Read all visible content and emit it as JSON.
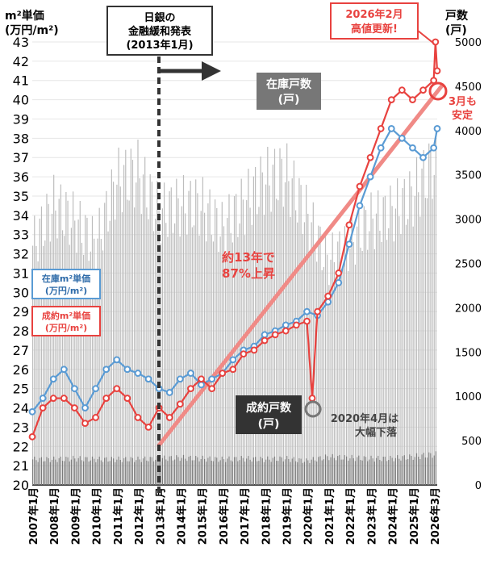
{
  "chart_data": {
    "type": "line",
    "left_axis": {
      "title": [
        "m²単価",
        "(万円/m²)"
      ],
      "ylim": [
        20,
        43
      ],
      "ticks": [
        20,
        21,
        22,
        23,
        24,
        25,
        26,
        27,
        28,
        29,
        30,
        31,
        32,
        33,
        34,
        35,
        36,
        37,
        38,
        39,
        40,
        41,
        42,
        43
      ]
    },
    "right_axis": {
      "title": [
        "戸数",
        "(戸)"
      ],
      "ylim": [
        0,
        5000
      ],
      "ticks": [
        0,
        500,
        1000,
        1500,
        2000,
        2500,
        3000,
        3500,
        4000,
        4500,
        5000
      ]
    },
    "x_ticks": [
      "2007年1月",
      "2008年1月",
      "2009年1月",
      "2010年1月",
      "2011年1月",
      "2012年1月",
      "2013年1月",
      "2014年1月",
      "2015年1月",
      "2016年1月",
      "2017年1月",
      "2018年1月",
      "2019年1月",
      "2020年1月",
      "2021年1月",
      "2022年1月",
      "2023年1月",
      "2024年1月",
      "2025年1月",
      "2026年3月"
    ],
    "x_range": [
      "2007-01",
      "2026-03"
    ],
    "inventory_units_yearly": {
      "x": [
        "2007",
        "2008",
        "2009",
        "2010",
        "2011",
        "2012",
        "2013",
        "2014",
        "2015",
        "2016",
        "2017",
        "2018",
        "2019",
        "2020",
        "2021",
        "2022",
        "2023",
        "2024",
        "2025",
        "2026"
      ],
      "values": [
        3000,
        3500,
        3300,
        3000,
        3800,
        3900,
        3400,
        3500,
        3500,
        3200,
        3500,
        3800,
        3900,
        3400,
        2800,
        3000,
        3300,
        3400,
        3600,
        4000
      ]
    },
    "closed_units_yearly": {
      "x": [
        "2007",
        "2008",
        "2009",
        "2010",
        "2011",
        "2012",
        "2013",
        "2014",
        "2015",
        "2016",
        "2017",
        "2018",
        "2019",
        "2020",
        "2021",
        "2022",
        "2023",
        "2024",
        "2025",
        "2026"
      ],
      "values": [
        320,
        320,
        330,
        320,
        320,
        320,
        330,
        340,
        330,
        320,
        330,
        320,
        330,
        300,
        350,
        340,
        330,
        330,
        350,
        380
      ]
    },
    "series": [
      {
        "name": "在庫m²単価(万円/m²)",
        "color": "#5a9bd4",
        "x": [
          "2007-01",
          "2007-07",
          "2008-01",
          "2008-07",
          "2009-01",
          "2009-07",
          "2010-01",
          "2010-07",
          "2011-01",
          "2011-07",
          "2012-01",
          "2012-07",
          "2013-01",
          "2013-07",
          "2014-01",
          "2014-07",
          "2015-01",
          "2015-07",
          "2016-01",
          "2016-07",
          "2017-01",
          "2017-07",
          "2018-01",
          "2018-07",
          "2019-01",
          "2019-07",
          "2020-01",
          "2020-07",
          "2021-01",
          "2021-07",
          "2022-01",
          "2022-07",
          "2023-01",
          "2023-07",
          "2024-01",
          "2024-07",
          "2025-01",
          "2025-07",
          "2026-01",
          "2026-03"
        ],
        "values": [
          23.8,
          24.5,
          25.5,
          26.0,
          25.0,
          24.0,
          25.0,
          26.0,
          26.5,
          26.0,
          25.8,
          25.5,
          25.0,
          24.8,
          25.5,
          25.8,
          25.2,
          25.5,
          25.8,
          26.5,
          27.0,
          27.2,
          27.8,
          28.0,
          28.3,
          28.5,
          29.0,
          28.8,
          29.5,
          30.5,
          32.5,
          34.5,
          36.0,
          37.5,
          38.5,
          38.0,
          37.5,
          37.0,
          37.5,
          38.5
        ]
      },
      {
        "name": "成約m²単価(万円/m²)",
        "color": "#e8423f",
        "x": [
          "2007-01",
          "2007-07",
          "2008-01",
          "2008-07",
          "2009-01",
          "2009-07",
          "2010-01",
          "2010-07",
          "2011-01",
          "2011-07",
          "2012-01",
          "2012-07",
          "2013-01",
          "2013-07",
          "2014-01",
          "2014-07",
          "2015-01",
          "2015-07",
          "2016-01",
          "2016-07",
          "2017-01",
          "2017-07",
          "2018-01",
          "2018-07",
          "2019-01",
          "2019-07",
          "2020-01",
          "2020-04",
          "2020-07",
          "2021-01",
          "2021-07",
          "2022-01",
          "2022-07",
          "2023-01",
          "2023-07",
          "2024-01",
          "2024-07",
          "2025-01",
          "2025-07",
          "2026-01",
          "2026-02",
          "2026-03"
        ],
        "values": [
          22.5,
          24.0,
          24.5,
          24.5,
          24.0,
          23.2,
          23.5,
          24.5,
          25.0,
          24.5,
          23.5,
          23.0,
          24.0,
          23.5,
          24.2,
          25.0,
          25.5,
          25.0,
          25.8,
          26.0,
          26.8,
          27.0,
          27.5,
          27.8,
          28.0,
          28.3,
          28.5,
          24.5,
          29.0,
          29.8,
          31.0,
          33.5,
          35.5,
          37.0,
          38.5,
          40.0,
          40.5,
          40.0,
          40.5,
          41.0,
          43.0,
          41.5
        ]
      }
    ]
  },
  "annotations": {
    "boj": [
      "日銀の",
      "金融緩和発表",
      "(2013年1月)"
    ],
    "inventory_label": [
      "在庫戸数",
      "(戸)"
    ],
    "closed_label": [
      "成約戸数",
      "(戸)"
    ],
    "record": [
      "2026年2月",
      "高値更新!"
    ],
    "march_stable": [
      "3月も",
      "安定"
    ],
    "rise": [
      "約13年で",
      "87%上昇"
    ],
    "drop_2020": [
      "2020年4月は",
      "大幅下落"
    ],
    "legend_inventory": [
      "在庫m²単価",
      "(万円/m²)"
    ],
    "legend_closed": [
      "成約m²単価",
      "(万円/m²)"
    ]
  },
  "colors": {
    "red": "#e8423f",
    "blue": "#5a9bd4",
    "dark_box": "#333333",
    "gray_box": "#777777",
    "inventory_bars": "#bdbdbd",
    "closed_bars": "#7a7a7a"
  }
}
